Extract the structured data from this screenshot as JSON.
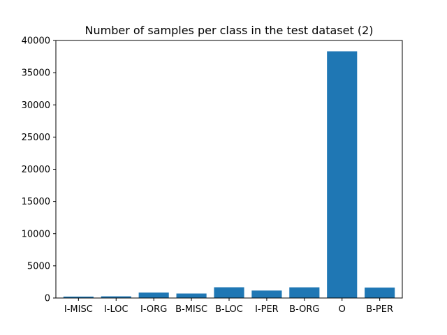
{
  "chart_data": {
    "type": "bar",
    "title": "Number of samples per class in the test dataset (2)",
    "xlabel": "",
    "ylabel": "",
    "categories": [
      "I-MISC",
      "I-LOC",
      "I-ORG",
      "B-MISC",
      "B-LOC",
      "I-PER",
      "B-ORG",
      "O",
      "B-PER"
    ],
    "values": [
      220,
      260,
      840,
      700,
      1670,
      1160,
      1660,
      38320,
      1620
    ],
    "ylim": [
      0,
      40000
    ],
    "yticks": [
      0,
      5000,
      10000,
      15000,
      20000,
      25000,
      30000,
      35000,
      40000
    ],
    "bar_color": "#1f77b4",
    "grid": false,
    "legend": "none"
  }
}
